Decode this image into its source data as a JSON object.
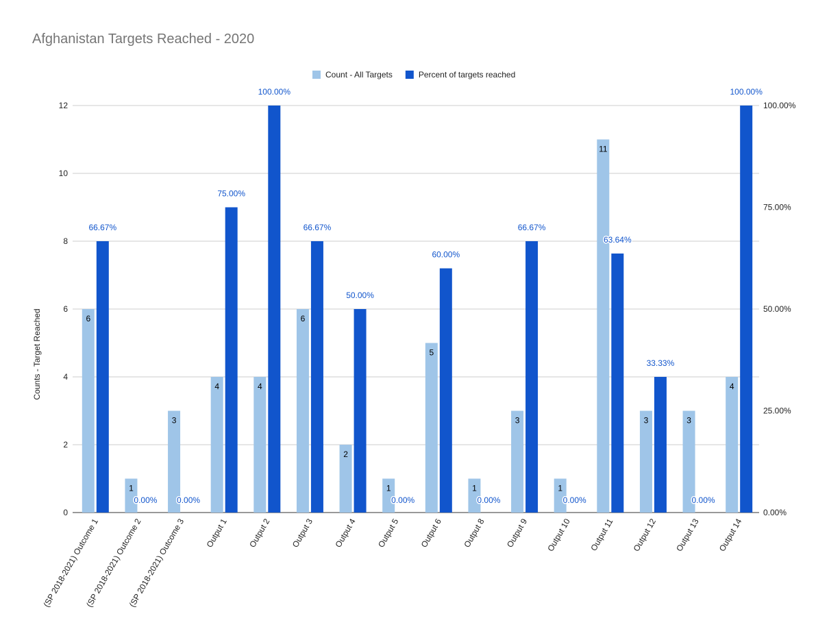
{
  "chart_data": {
    "type": "bar",
    "title": "Afghanistan Targets Reached - 2020",
    "xlabel": "",
    "ylabel": "Counts - Target Reached",
    "y2label": "",
    "ylim": [
      0,
      12
    ],
    "y2lim": [
      0,
      1
    ],
    "yticks": [
      "0",
      "2",
      "4",
      "6",
      "8",
      "10",
      "12"
    ],
    "y2ticks": [
      "0.00%",
      "25.00%",
      "50.00%",
      "75.00%",
      "100.00%"
    ],
    "legend_position": "top-center",
    "grid": true,
    "categories": [
      "(SP 2018-2021) Outcome 1",
      "(SP 2018-2021) Outcome 2",
      "(SP 2018-2021) Outcome 3",
      "Output 1",
      "Output 2",
      "Output 3",
      "Output 4",
      "Output 5",
      "Output 6",
      "Output 8",
      "Output 9",
      "Output 10",
      "Output 11",
      "Output 12",
      "Output 13",
      "Output 14"
    ],
    "series": [
      {
        "name": "Count - All Targets",
        "axis": "left",
        "color": "#9fc5e8",
        "values": [
          6,
          1,
          3,
          4,
          4,
          6,
          2,
          1,
          5,
          1,
          3,
          1,
          11,
          3,
          3,
          4
        ],
        "labels": [
          "6",
          "1",
          "3",
          "4",
          "4",
          "6",
          "2",
          "1",
          "5",
          "1",
          "3",
          "1",
          "11",
          "3",
          "3",
          "4"
        ]
      },
      {
        "name": "Percent of targets reached",
        "axis": "right",
        "color": "#1155cc",
        "values": [
          0.6667,
          0,
          0,
          0.75,
          1,
          0.6667,
          0.5,
          0,
          0.6,
          0,
          0.6667,
          0,
          0.6364,
          0.3333,
          0,
          1
        ],
        "labels": [
          "66.67%",
          "0.00%",
          "0.00%",
          "75.00%",
          "100.00%",
          "66.67%",
          "50.00%",
          "0.00%",
          "60.00%",
          "0.00%",
          "66.67%",
          "0.00%",
          "63.64%",
          "33.33%",
          "0.00%",
          "100.00%"
        ]
      }
    ]
  }
}
